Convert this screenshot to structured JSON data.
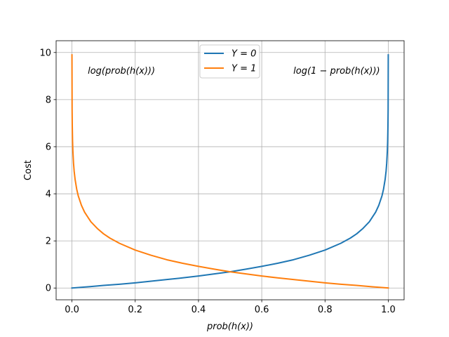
{
  "chart_data": {
    "type": "line",
    "xlabel": "prob(h(x))",
    "ylabel": "Cost",
    "xlim": [
      -0.05,
      1.05
    ],
    "ylim": [
      -0.5,
      10.5
    ],
    "grid": true,
    "legend_position": "top-center",
    "xticks": [
      "0.0",
      "0.2",
      "0.4",
      "0.6",
      "0.8",
      "1.0"
    ],
    "yticks": [
      "0",
      "2",
      "4",
      "6",
      "8",
      "10"
    ],
    "annotations": [
      {
        "text": "log(prob(h(x)))",
        "x": 0.05,
        "y": 9.1
      },
      {
        "text": "log(1 − prob(h(x)))",
        "x": 0.7,
        "y": 9.1
      }
    ],
    "series": [
      {
        "name": "Y = 0",
        "color": "#1f77b4",
        "x": [
          0.0,
          0.05,
          0.1,
          0.15,
          0.2,
          0.25,
          0.3,
          0.35,
          0.4,
          0.45,
          0.5,
          0.55,
          0.6,
          0.65,
          0.7,
          0.75,
          0.8,
          0.85,
          0.88,
          0.9,
          0.92,
          0.94,
          0.96,
          0.97,
          0.98,
          0.985,
          0.99,
          0.993,
          0.995,
          0.997,
          0.998,
          0.999,
          0.9995,
          0.99995
        ],
        "y": [
          0.0,
          0.05,
          0.11,
          0.16,
          0.22,
          0.29,
          0.36,
          0.43,
          0.51,
          0.6,
          0.69,
          0.8,
          0.92,
          1.05,
          1.2,
          1.39,
          1.61,
          1.9,
          2.12,
          2.3,
          2.53,
          2.81,
          3.22,
          3.51,
          3.91,
          4.2,
          4.61,
          4.96,
          5.3,
          5.81,
          6.21,
          6.91,
          7.6,
          9.9
        ]
      },
      {
        "name": "Y = 1",
        "color": "#ff7f0e",
        "x": [
          5e-05,
          0.0005,
          0.001,
          0.002,
          0.003,
          0.005,
          0.007,
          0.01,
          0.015,
          0.02,
          0.03,
          0.04,
          0.06,
          0.08,
          0.1,
          0.12,
          0.15,
          0.2,
          0.25,
          0.3,
          0.35,
          0.4,
          0.45,
          0.5,
          0.55,
          0.6,
          0.65,
          0.7,
          0.75,
          0.8,
          0.85,
          0.9,
          0.95,
          1.0
        ],
        "y": [
          9.9,
          7.6,
          6.91,
          6.21,
          5.81,
          5.3,
          4.96,
          4.61,
          4.2,
          3.91,
          3.51,
          3.22,
          2.81,
          2.53,
          2.3,
          2.12,
          1.9,
          1.61,
          1.39,
          1.2,
          1.05,
          0.92,
          0.8,
          0.69,
          0.6,
          0.51,
          0.43,
          0.36,
          0.29,
          0.22,
          0.16,
          0.11,
          0.05,
          0.0
        ]
      }
    ]
  }
}
